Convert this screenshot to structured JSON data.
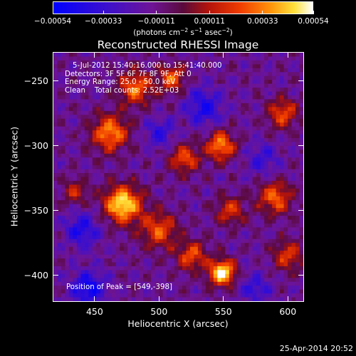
{
  "chart_data": {
    "type": "heatmap",
    "title": "Reconstructed RHESSI Image",
    "xlabel": "Heliocentric X (arcsec)",
    "ylabel": "Heliocentric Y (arcsec)",
    "xlim": [
      418,
      612
    ],
    "ylim": [
      -420,
      -228
    ],
    "x_ticks": [
      450,
      500,
      550,
      600
    ],
    "y_ticks": [
      -250,
      -300,
      -350,
      -400
    ],
    "x_tick_labels": [
      "450",
      "500",
      "550",
      "600"
    ],
    "y_tick_labels": [
      "−250",
      "−300",
      "−350",
      "−400"
    ],
    "colorbar": {
      "min": -0.00054,
      "max": 0.00054,
      "ticks": [
        -0.00054,
        -0.00033,
        -0.00011,
        0.00011,
        0.00033,
        0.00054
      ],
      "tick_labels": [
        "−0.00054",
        "−0.00033",
        "−0.00011",
        "0.00011",
        "0.00033",
        "0.00054"
      ],
      "units_text": "(photons cm",
      "units_exp1": "−2",
      "units_mid": " s",
      "units_exp2": "−1",
      "units_mid2": " asec",
      "units_exp3": "−2",
      "units_end": ")"
    },
    "annotations": {
      "time_range": "5-Jul-2012 15:40:16.000 to 15:41:40.000",
      "detectors": "Detectors: 3F 5F 6F 7F 8F 9F, Att 0",
      "energy": "Energy Range: 25.0 - 50.0 keV",
      "method_counts": "Clean    Total counts: 2.52E+03",
      "peak": "Position of Peak = [549,-398]"
    },
    "sources": [
      {
        "x": 549,
        "y": -398,
        "amp": 1.0,
        "sigma": 7
      },
      {
        "x": 472,
        "y": -345,
        "amp": 0.95,
        "sigma": 10
      },
      {
        "x": 482,
        "y": -255,
        "amp": 0.65,
        "sigma": 9
      },
      {
        "x": 462,
        "y": -290,
        "amp": 0.7,
        "sigma": 10
      },
      {
        "x": 510,
        "y": -248,
        "amp": 0.6,
        "sigma": 7
      },
      {
        "x": 548,
        "y": -300,
        "amp": 0.7,
        "sigma": 8
      },
      {
        "x": 520,
        "y": -310,
        "amp": 0.55,
        "sigma": 8
      },
      {
        "x": 500,
        "y": -365,
        "amp": 0.55,
        "sigma": 10
      },
      {
        "x": 525,
        "y": -385,
        "amp": 0.55,
        "sigma": 8
      },
      {
        "x": 590,
        "y": -340,
        "amp": 0.6,
        "sigma": 9
      },
      {
        "x": 596,
        "y": -275,
        "amp": 0.55,
        "sigma": 8
      },
      {
        "x": 600,
        "y": -385,
        "amp": 0.5,
        "sigma": 8
      },
      {
        "x": 555,
        "y": -350,
        "amp": 0.45,
        "sigma": 8
      },
      {
        "x": 435,
        "y": -335,
        "amp": 0.4,
        "sigma": 7
      },
      {
        "x": 445,
        "y": -410,
        "amp": -0.55,
        "sigma": 9
      },
      {
        "x": 535,
        "y": -270,
        "amp": -0.45,
        "sigma": 10
      },
      {
        "x": 440,
        "y": -365,
        "amp": -0.45,
        "sigma": 9
      },
      {
        "x": 580,
        "y": -310,
        "amp": -0.3,
        "sigma": 9
      },
      {
        "x": 500,
        "y": -290,
        "amp": -0.35,
        "sigma": 8
      },
      {
        "x": 575,
        "y": -410,
        "amp": -0.35,
        "sigma": 8
      }
    ],
    "grid_nx": 64,
    "grid_ny": 64,
    "grid": false
  },
  "footer": {
    "timestamp": "25-Apr-2014 20:52"
  }
}
